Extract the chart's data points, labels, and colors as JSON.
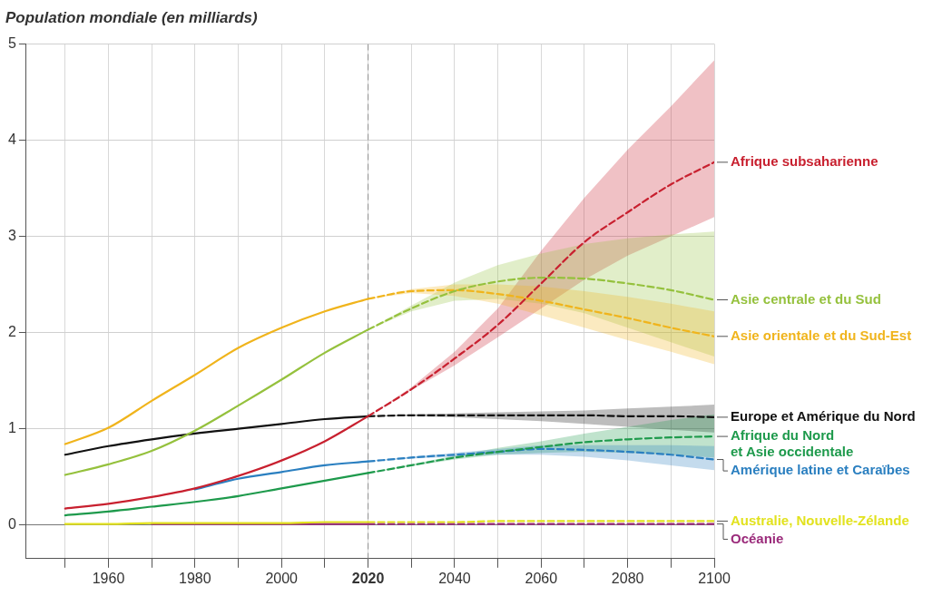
{
  "chart_data": {
    "type": "line",
    "title": "Population mondiale (en milliards)",
    "xlim": [
      1941,
      2100
    ],
    "ylim": [
      -0.35,
      5
    ],
    "xticks": [
      {
        "value": 1950,
        "label": null
      },
      1960,
      {
        "value": 1970,
        "label": null
      },
      1980,
      {
        "value": 1990,
        "label": null
      },
      2000,
      {
        "value": 2010,
        "label": null
      },
      2020,
      {
        "value": 2030,
        "label": null
      },
      2040,
      {
        "value": 2050,
        "label": null
      },
      2060,
      {
        "value": 2070,
        "label": null
      },
      2080,
      {
        "value": 2090,
        "label": null
      },
      2100
    ],
    "yticks": [
      0,
      1,
      2,
      3,
      4,
      5
    ],
    "grid": true,
    "legend": false,
    "marker": "none",
    "ref_lines": [
      {
        "axis": "x",
        "value": 2020,
        "color": "#9a9a9a",
        "line_style": "dashed"
      }
    ],
    "series": [
      {
        "color": "#f0b41c",
        "line_style": "solid",
        "x": [
          1950,
          1960,
          1970,
          1980,
          1990,
          2000,
          2010,
          2020
        ],
        "values": [
          0.84,
          1.01,
          1.29,
          1.56,
          1.84,
          2.05,
          2.22,
          2.35
        ]
      },
      {
        "color": "#95c13d",
        "line_style": "solid",
        "x": [
          1950,
          1960,
          1970,
          1980,
          1990,
          2000,
          2010,
          2020
        ],
        "values": [
          0.52,
          0.63,
          0.77,
          0.98,
          1.24,
          1.51,
          1.79,
          2.03
        ]
      },
      {
        "color": "#c8202f",
        "line_style": "solid",
        "x": [
          1950,
          1960,
          1970,
          1980,
          1990,
          2000,
          2010,
          2020
        ],
        "values": [
          0.17,
          0.22,
          0.29,
          0.38,
          0.51,
          0.67,
          0.87,
          1.13
        ]
      },
      {
        "color": "#111111",
        "line_style": "solid",
        "x": [
          1950,
          1960,
          1970,
          1980,
          1990,
          2000,
          2010,
          2020
        ],
        "values": [
          0.73,
          0.82,
          0.89,
          0.95,
          1.0,
          1.05,
          1.1,
          1.13
        ]
      },
      {
        "color": "#1e9a4c",
        "line_style": "solid",
        "x": [
          1950,
          1960,
          1970,
          1980,
          1990,
          2000,
          2010,
          2020
        ],
        "values": [
          0.1,
          0.14,
          0.19,
          0.24,
          0.3,
          0.38,
          0.46,
          0.54
        ]
      },
      {
        "color": "#2a7fc0",
        "line_style": "solid",
        "x": [
          1980,
          1990,
          2000,
          2010,
          2020
        ],
        "values": [
          0.37,
          0.48,
          0.55,
          0.62,
          0.66
        ]
      },
      {
        "color": "#e2e21e",
        "line_style": "solid",
        "x": [
          1950,
          1960,
          1970,
          1980,
          1990,
          2000,
          2010,
          2020
        ],
        "values": [
          0.01,
          0.01,
          0.02,
          0.02,
          0.02,
          0.02,
          0.03,
          0.03
        ]
      },
      {
        "color": "#9b2b7b",
        "line_style": "solid",
        "x": [
          1970,
          1980,
          1990,
          2000,
          2010,
          2020
        ],
        "values": [
          0.01,
          0.01,
          0.01,
          0.01,
          0.01,
          0.01
        ]
      },
      {
        "name": "Afrique subsaharienne",
        "color": "#c8202f",
        "line_style": "dashed",
        "x": [
          2020,
          2030,
          2040,
          2050,
          2060,
          2070,
          2080,
          2090,
          2100
        ],
        "values": [
          1.13,
          1.41,
          1.73,
          2.08,
          2.51,
          2.94,
          3.25,
          3.54,
          3.77
        ],
        "lower": [
          1.13,
          1.4,
          1.66,
          1.95,
          2.25,
          2.55,
          2.8,
          3.0,
          3.2
        ],
        "upper": [
          1.13,
          1.43,
          1.8,
          2.25,
          2.85,
          3.4,
          3.9,
          4.35,
          4.83
        ]
      },
      {
        "name": "Asie centrale et du Sud",
        "color": "#95c13d",
        "line_style": "dashed",
        "x": [
          2020,
          2030,
          2040,
          2050,
          2060,
          2070,
          2080,
          2090,
          2100
        ],
        "values": [
          2.03,
          2.25,
          2.43,
          2.53,
          2.57,
          2.56,
          2.51,
          2.44,
          2.34
        ],
        "lower": [
          2.03,
          2.22,
          2.33,
          2.35,
          2.3,
          2.2,
          2.05,
          1.9,
          1.75
        ],
        "upper": [
          2.03,
          2.28,
          2.52,
          2.7,
          2.82,
          2.92,
          2.98,
          3.02,
          3.05
        ]
      },
      {
        "name": "Asie orientale et du Sud-Est",
        "color": "#f0b41c",
        "line_style": "dashed",
        "x": [
          2020,
          2030,
          2040,
          2050,
          2060,
          2070,
          2080,
          2090,
          2100
        ],
        "values": [
          2.35,
          2.43,
          2.44,
          2.4,
          2.33,
          2.24,
          2.15,
          2.05,
          1.96
        ],
        "lower": [
          2.35,
          2.41,
          2.38,
          2.3,
          2.18,
          2.05,
          1.92,
          1.8,
          1.67
        ],
        "upper": [
          2.35,
          2.45,
          2.5,
          2.5,
          2.48,
          2.43,
          2.37,
          2.3,
          2.22
        ]
      },
      {
        "name": "Europe et Amérique du Nord",
        "color": "#111111",
        "line_style": "dashed",
        "x": [
          2020,
          2030,
          2040,
          2050,
          2060,
          2070,
          2080,
          2090,
          2100
        ],
        "values": [
          1.13,
          1.14,
          1.14,
          1.14,
          1.14,
          1.14,
          1.13,
          1.13,
          1.12
        ],
        "lower": [
          1.13,
          1.13,
          1.12,
          1.1,
          1.08,
          1.05,
          1.02,
          0.99,
          0.96
        ],
        "upper": [
          1.13,
          1.15,
          1.16,
          1.17,
          1.18,
          1.19,
          1.21,
          1.23,
          1.25
        ]
      },
      {
        "name": "Afrique du Nord\net Asie occidentale",
        "color": "#1e9a4c",
        "line_style": "dashed",
        "x": [
          2020,
          2030,
          2040,
          2050,
          2060,
          2070,
          2080,
          2090,
          2100
        ],
        "values": [
          0.54,
          0.62,
          0.7,
          0.76,
          0.81,
          0.86,
          0.89,
          0.91,
          0.92
        ],
        "lower": [
          0.54,
          0.61,
          0.68,
          0.73,
          0.75,
          0.76,
          0.75,
          0.73,
          0.7
        ],
        "upper": [
          0.54,
          0.63,
          0.72,
          0.8,
          0.87,
          0.95,
          1.02,
          1.09,
          1.15
        ]
      },
      {
        "name": "Amérique latine et Caraïbes",
        "color": "#2a7fc0",
        "line_style": "dashed",
        "x": [
          2020,
          2030,
          2040,
          2050,
          2060,
          2070,
          2080,
          2090,
          2100
        ],
        "values": [
          0.66,
          0.7,
          0.73,
          0.76,
          0.79,
          0.78,
          0.76,
          0.73,
          0.68
        ],
        "lower": [
          0.66,
          0.69,
          0.71,
          0.73,
          0.73,
          0.71,
          0.67,
          0.62,
          0.57
        ],
        "upper": [
          0.66,
          0.71,
          0.75,
          0.79,
          0.83,
          0.83,
          0.83,
          0.83,
          0.82
        ]
      },
      {
        "name": "Australie, Nouvelle-Zélande",
        "color": "#e2e21e",
        "line_style": "dashed",
        "x": [
          2020,
          2030,
          2040,
          2050,
          2060,
          2070,
          2080,
          2090,
          2100
        ],
        "values": [
          0.03,
          0.03,
          0.03,
          0.04,
          0.04,
          0.04,
          0.04,
          0.04,
          0.04
        ]
      },
      {
        "name": "Océanie",
        "color": "#9b2b7b",
        "line_style": "dashed",
        "x": [
          2020,
          2030,
          2040,
          2050,
          2060,
          2070,
          2080,
          2090,
          2100
        ],
        "values": [
          0.01,
          0.01,
          0.01,
          0.01,
          0.01,
          0.01,
          0.01,
          0.01,
          0.01
        ]
      }
    ]
  }
}
